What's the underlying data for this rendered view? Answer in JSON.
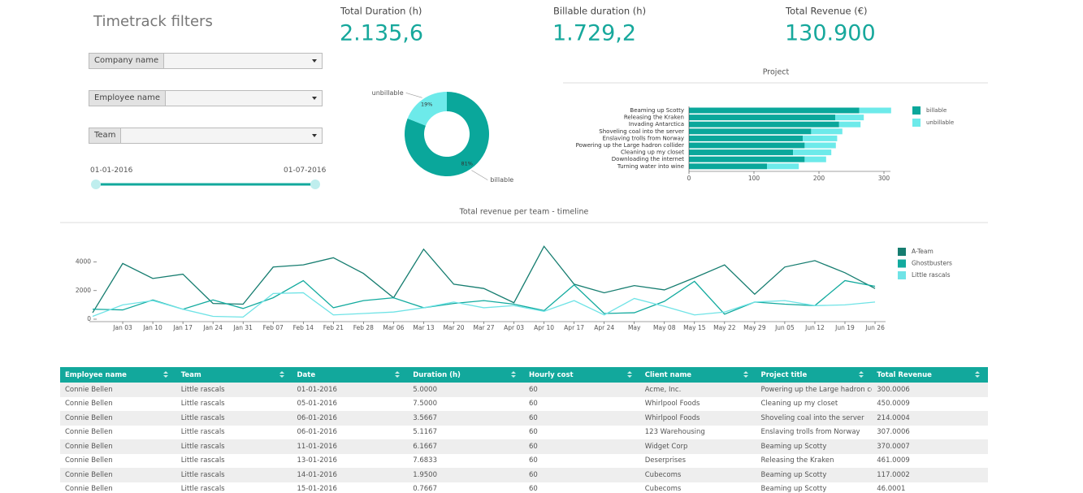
{
  "filters": {
    "title": "Timetrack filters",
    "dropdowns": [
      "Company name",
      "Employee name",
      "Team"
    ],
    "date_start": "01-01-2016",
    "date_end": "01-07-2016"
  },
  "kpis": [
    {
      "label": "Total Duration (h)",
      "value": "2.135,6"
    },
    {
      "label": "Billable duration (h)",
      "value": "1.729,2"
    },
    {
      "label": "Total Revenue (€)",
      "value": "130.900"
    }
  ],
  "chart_data": [
    {
      "type": "donut",
      "categories": [
        "billable",
        "unbillable"
      ],
      "values": [
        81,
        19
      ],
      "value_labels": [
        "81%",
        "19%"
      ],
      "colors": [
        "#0aa79b",
        "#6deaea"
      ]
    },
    {
      "type": "hbar",
      "title": "Project",
      "categories": [
        "Beaming up Scotty",
        "Releasing the Kraken",
        "Invading Antarctica",
        "Shoveling coal into the server",
        "Enslaving trolls from Norway",
        "Powering up the Large hadron collider",
        "Cleaning up my closet",
        "Downloading the internet",
        "Turning water into wine"
      ],
      "series": [
        {
          "name": "billable",
          "color": "#0aa79b",
          "values": [
            262,
            225,
            231,
            188,
            175,
            178,
            160,
            178,
            120
          ]
        },
        {
          "name": "unbillable",
          "color": "#6deaea",
          "values": [
            49,
            44,
            33,
            48,
            53,
            48,
            59,
            33,
            49
          ]
        }
      ],
      "xlim": [
        0,
        310
      ],
      "xticks": [
        0,
        100,
        200,
        300
      ]
    },
    {
      "type": "line",
      "title": "Total revenue per team - timeline",
      "categories": [
        null,
        "Jan 03",
        "Jan 10",
        "Jan 17",
        "Jan 24",
        "Jan 31",
        "Feb 07",
        "Feb 14",
        "Feb 21",
        "Feb 28",
        "Mar 06",
        "Mar 13",
        "Mar 20",
        "Mar 27",
        "Apr 03",
        "Apr 10",
        "Apr 17",
        "Apr 24",
        "May",
        "May 08",
        "May 15",
        "May 22",
        "May 29",
        "Jun 05",
        "Jun 12",
        "Jun 19",
        "Jun 26"
      ],
      "series": [
        {
          "name": "A-Team",
          "color": "#167d70",
          "values": [
            450,
            3900,
            2850,
            3150,
            1100,
            1050,
            3650,
            3800,
            4300,
            3200,
            1500,
            4900,
            2450,
            2150,
            1150,
            5100,
            2450,
            1850,
            2350,
            2050,
            2900,
            3800,
            1750,
            3650,
            4100,
            3250,
            2150
          ]
        },
        {
          "name": "Ghostbusters",
          "color": "#12aa9e",
          "values": [
            700,
            650,
            1350,
            700,
            1350,
            750,
            1500,
            2700,
            800,
            1300,
            1500,
            800,
            1100,
            1300,
            1050,
            600,
            2400,
            400,
            450,
            1250,
            2650,
            350,
            1200,
            1050,
            950,
            2700,
            2300
          ]
        },
        {
          "name": "Little rascals",
          "color": "#6fe3e6",
          "values": [
            200,
            1000,
            1300,
            700,
            200,
            150,
            1800,
            1850,
            300,
            400,
            500,
            800,
            1200,
            800,
            950,
            550,
            1300,
            300,
            1450,
            900,
            300,
            500,
            1200,
            1300,
            950,
            1000,
            1200
          ]
        }
      ],
      "ylim": [
        0,
        5400
      ],
      "yticks": [
        0,
        2000,
        4000
      ]
    }
  ],
  "table": {
    "columns": [
      "Employee name",
      "Team",
      "Date",
      "Duration (h)",
      "Hourly cost",
      "Client name",
      "Project title",
      "Total Revenue"
    ],
    "rows": [
      [
        "Connie Bellen",
        "Little rascals",
        "01-01-2016",
        "5.0000",
        "60",
        "Acme, Inc.",
        "Powering up the Large hadron co...",
        "300.0006"
      ],
      [
        "Connie Bellen",
        "Little rascals",
        "05-01-2016",
        "7.5000",
        "60",
        "Whirlpool Foods",
        "Cleaning up my closet",
        "450.0009"
      ],
      [
        "Connie Bellen",
        "Little rascals",
        "06-01-2016",
        "3.5667",
        "60",
        "Whirlpool Foods",
        "Shoveling coal into the server",
        "214.0004"
      ],
      [
        "Connie Bellen",
        "Little rascals",
        "06-01-2016",
        "5.1167",
        "60",
        "123 Warehousing",
        "Enslaving trolls from Norway",
        "307.0006"
      ],
      [
        "Connie Bellen",
        "Little rascals",
        "11-01-2016",
        "6.1667",
        "60",
        "Widget Corp",
        "Beaming up Scotty",
        "370.0007"
      ],
      [
        "Connie Bellen",
        "Little rascals",
        "13-01-2016",
        "7.6833",
        "60",
        "Deserprises",
        "Releasing the Kraken",
        "461.0009"
      ],
      [
        "Connie Bellen",
        "Little rascals",
        "14-01-2016",
        "1.9500",
        "60",
        "Cubecoms",
        "Beaming up Scotty",
        "117.0002"
      ],
      [
        "Connie Bellen",
        "Little rascals",
        "15-01-2016",
        "0.7667",
        "60",
        "Cubecoms",
        "Beaming up Scotty",
        "46.0001"
      ]
    ]
  }
}
